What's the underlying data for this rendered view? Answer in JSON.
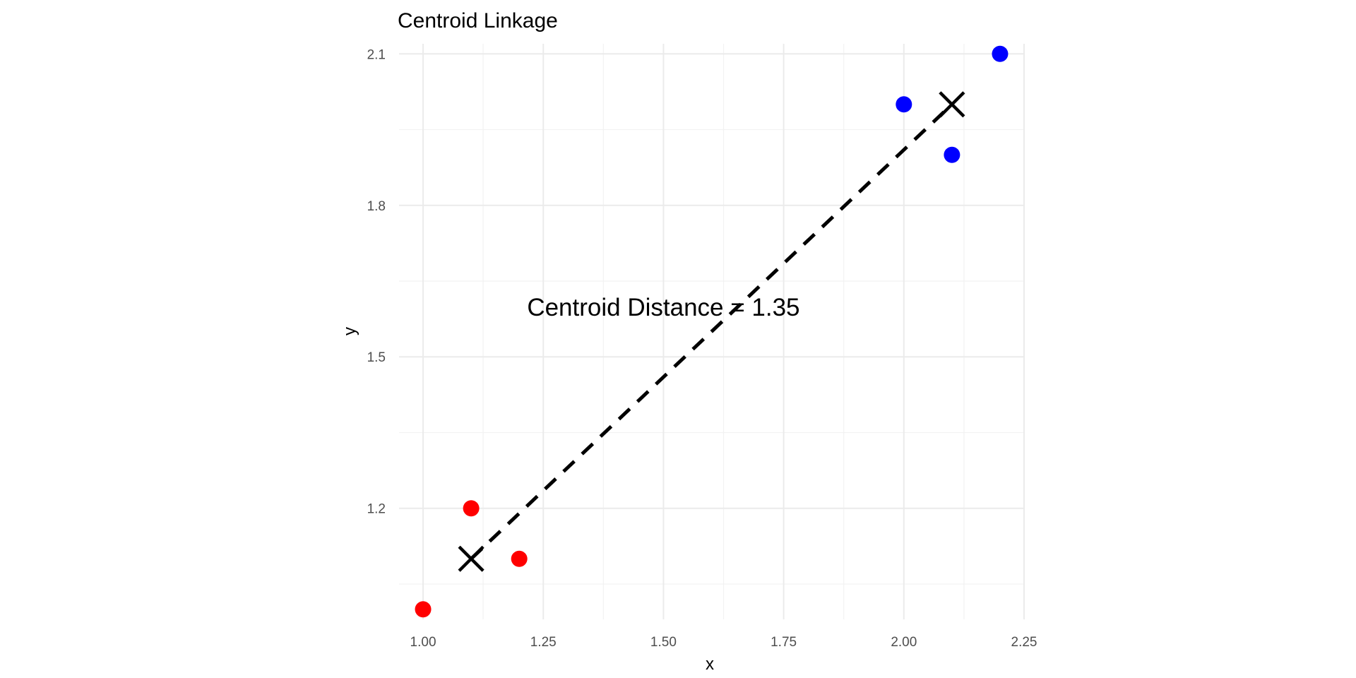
{
  "chart_data": {
    "type": "scatter",
    "title": "Centroid Linkage",
    "xlabel": "x",
    "ylabel": "y",
    "xlim": [
      0.95,
      2.25
    ],
    "ylim": [
      0.98,
      2.12
    ],
    "x_ticks": [
      1.0,
      1.25,
      1.5,
      1.75,
      2.0,
      2.25
    ],
    "x_tick_labels": [
      "1.00",
      "1.25",
      "1.50",
      "1.75",
      "2.00",
      "2.25"
    ],
    "y_ticks": [
      1.2,
      1.5,
      1.8,
      2.1
    ],
    "y_tick_labels": [
      "1.2",
      "1.5",
      "1.8",
      "2.1"
    ],
    "minor_x_ticks": [
      1.125,
      1.375,
      1.625,
      1.875,
      2.125
    ],
    "minor_y_ticks": [
      1.05,
      1.35,
      1.65,
      1.95
    ],
    "grid": true,
    "legend": "none",
    "series": [
      {
        "color": "#ff0000",
        "points": [
          {
            "x": 1.0,
            "y": 1.0
          },
          {
            "x": 1.1,
            "y": 1.2
          },
          {
            "x": 1.2,
            "y": 1.1
          }
        ]
      },
      {
        "color": "#0000ff",
        "points": [
          {
            "x": 2.0,
            "y": 2.0
          },
          {
            "x": 2.1,
            "y": 1.9
          },
          {
            "x": 2.2,
            "y": 2.1
          }
        ]
      }
    ],
    "centroids": [
      {
        "x": 1.1,
        "y": 1.1
      },
      {
        "x": 2.1,
        "y": 2.0
      }
    ],
    "centroid_marker": "x",
    "connector": {
      "style": "dashed",
      "color": "#000000",
      "from": 0,
      "to": 1
    },
    "annotation": {
      "text": "Centroid Distance = 1.35",
      "x": 1.5,
      "y": 1.6
    }
  }
}
